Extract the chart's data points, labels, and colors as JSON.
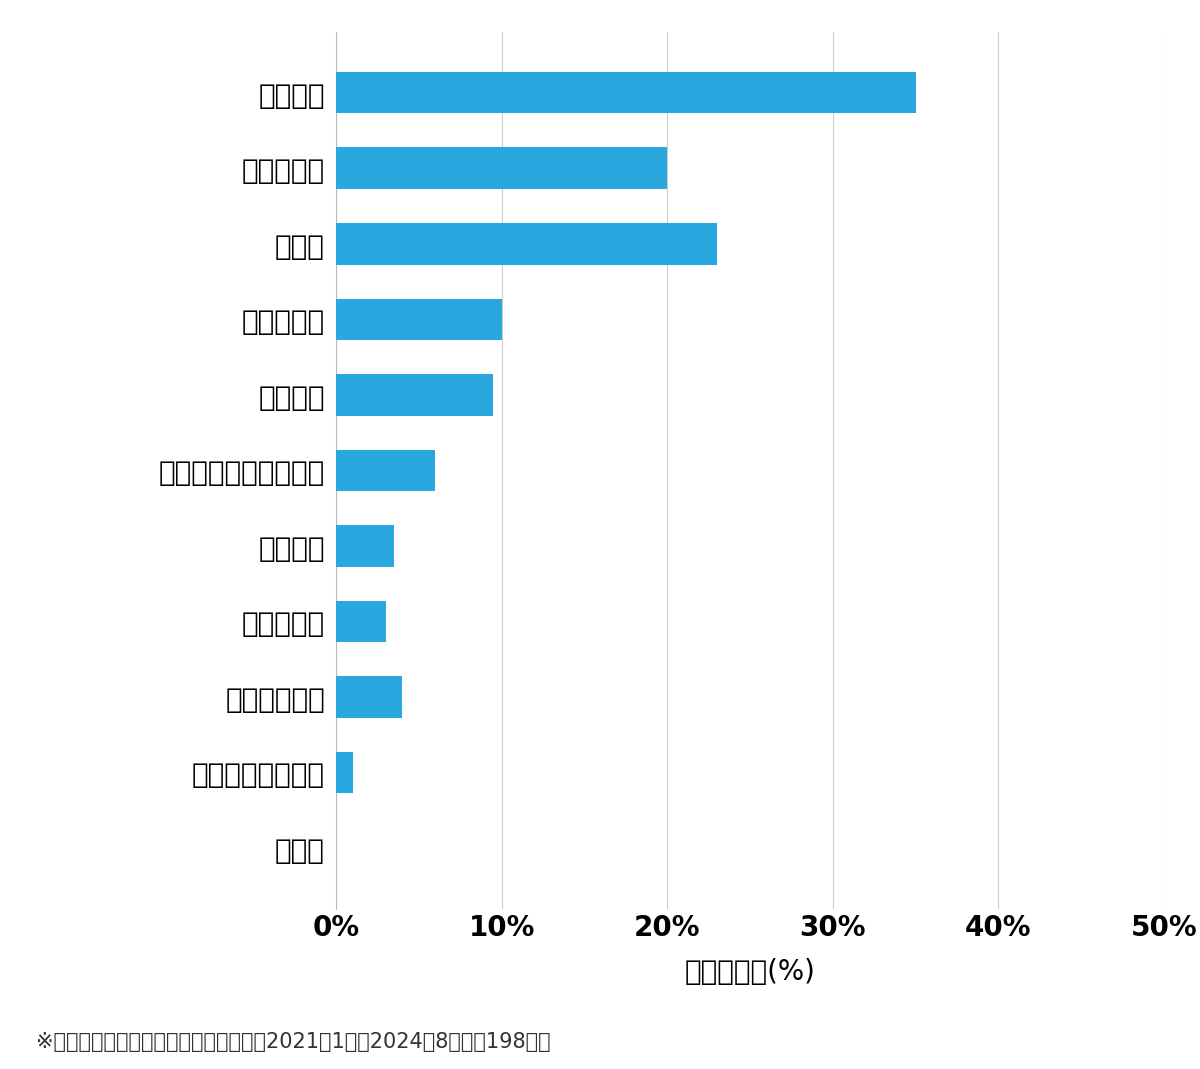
{
  "categories": [
    "その他",
    "スーツケース開鍵",
    "その他鍵作成",
    "玄関鍵作成",
    "金庫開鍵",
    "イモビ付国産車鍵作成",
    "車鍵作成",
    "その他開鍵",
    "車開鍵",
    "玄関鍵交換",
    "玄関開鍵"
  ],
  "values": [
    0.0,
    1.0,
    4.0,
    3.0,
    3.5,
    6.0,
    9.5,
    10.0,
    23.0,
    20.0,
    35.0
  ],
  "bar_color": "#29a8e0",
  "xlabel": "件数の割合(%)",
  "xlim": [
    0,
    50
  ],
  "xticks": [
    0,
    10,
    20,
    30,
    40,
    50
  ],
  "xticklabels": [
    "0%",
    "10%",
    "20%",
    "30%",
    "40%",
    "50%"
  ],
  "footnote": "※弊社受付の案件を対象に集計（期間：2021年1月～2024年8月、訜198件）",
  "background_color": "#ffffff",
  "bar_height": 0.55,
  "gridcolor": "#cccccc",
  "label_fontsize": 20,
  "tick_fontsize": 20,
  "footnote_fontsize": 15
}
